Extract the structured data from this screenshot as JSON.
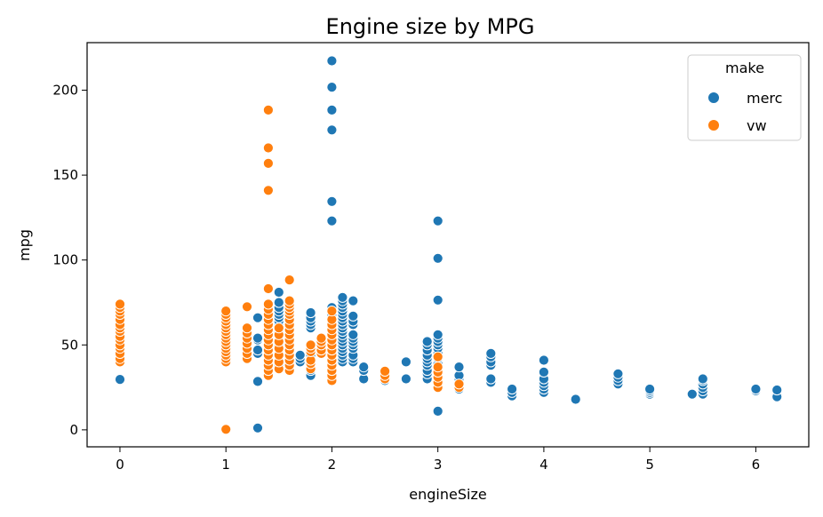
{
  "chart_data": {
    "type": "scatter",
    "title": "Engine size by MPG",
    "xlabel": "engineSize",
    "ylabel": "mpg",
    "xlim": [
      -0.31,
      6.5
    ],
    "ylim": [
      -10,
      228
    ],
    "xticks": [
      0,
      1,
      2,
      3,
      4,
      5,
      6
    ],
    "yticks": [
      0,
      50,
      100,
      150,
      200
    ],
    "grid": false,
    "legend": {
      "title": "make",
      "position": "top-right"
    },
    "series": [
      {
        "name": "merc",
        "color": "#1f77b4",
        "points": [
          [
            0,
            29.7
          ],
          [
            1.3,
            1.1
          ],
          [
            1.3,
            28.5
          ],
          [
            1.3,
            45
          ],
          [
            1.3,
            47
          ],
          [
            1.3,
            53
          ],
          [
            1.3,
            54
          ],
          [
            1.3,
            66
          ],
          [
            1.5,
            38
          ],
          [
            1.5,
            45
          ],
          [
            1.5,
            48
          ],
          [
            1.5,
            50
          ],
          [
            1.5,
            52
          ],
          [
            1.5,
            55
          ],
          [
            1.5,
            58
          ],
          [
            1.5,
            60
          ],
          [
            1.5,
            62
          ],
          [
            1.5,
            64
          ],
          [
            1.5,
            66
          ],
          [
            1.5,
            68
          ],
          [
            1.5,
            70
          ],
          [
            1.5,
            72
          ],
          [
            1.5,
            75
          ],
          [
            1.5,
            81
          ],
          [
            1.7,
            40
          ],
          [
            1.7,
            42
          ],
          [
            1.7,
            44
          ],
          [
            1.8,
            32
          ],
          [
            1.8,
            35
          ],
          [
            1.8,
            38
          ],
          [
            1.8,
            40
          ],
          [
            1.8,
            42
          ],
          [
            1.8,
            44
          ],
          [
            1.8,
            60
          ],
          [
            1.8,
            62
          ],
          [
            1.8,
            64
          ],
          [
            1.8,
            66
          ],
          [
            1.8,
            69
          ],
          [
            2.0,
            32
          ],
          [
            2.0,
            35
          ],
          [
            2.0,
            38
          ],
          [
            2.0,
            41
          ],
          [
            2.0,
            44
          ],
          [
            2.0,
            47
          ],
          [
            2.0,
            50
          ],
          [
            2.0,
            53
          ],
          [
            2.0,
            56
          ],
          [
            2.0,
            58
          ],
          [
            2.0,
            60
          ],
          [
            2.0,
            62
          ],
          [
            2.0,
            64
          ],
          [
            2.0,
            66
          ],
          [
            2.0,
            68
          ],
          [
            2.0,
            70
          ],
          [
            2.0,
            72
          ],
          [
            2.0,
            123
          ],
          [
            2.0,
            134.5
          ],
          [
            2.0,
            176.6
          ],
          [
            2.0,
            188.3
          ],
          [
            2.0,
            201.8
          ],
          [
            2.0,
            217.3
          ],
          [
            2.1,
            40
          ],
          [
            2.1,
            42
          ],
          [
            2.1,
            44
          ],
          [
            2.1,
            46
          ],
          [
            2.1,
            48
          ],
          [
            2.1,
            50
          ],
          [
            2.1,
            52
          ],
          [
            2.1,
            54
          ],
          [
            2.1,
            56
          ],
          [
            2.1,
            58
          ],
          [
            2.1,
            60
          ],
          [
            2.1,
            62
          ],
          [
            2.1,
            64
          ],
          [
            2.1,
            66
          ],
          [
            2.1,
            68
          ],
          [
            2.1,
            70
          ],
          [
            2.1,
            72
          ],
          [
            2.1,
            74
          ],
          [
            2.1,
            76
          ],
          [
            2.1,
            78
          ],
          [
            2.2,
            40
          ],
          [
            2.2,
            42
          ],
          [
            2.2,
            44
          ],
          [
            2.2,
            48
          ],
          [
            2.2,
            50
          ],
          [
            2.2,
            52
          ],
          [
            2.2,
            54
          ],
          [
            2.2,
            56
          ],
          [
            2.2,
            62
          ],
          [
            2.2,
            64
          ],
          [
            2.2,
            67
          ],
          [
            2.2,
            76
          ],
          [
            2.3,
            30
          ],
          [
            2.3,
            35
          ],
          [
            2.3,
            37
          ],
          [
            2.5,
            29
          ],
          [
            2.5,
            31
          ],
          [
            2.7,
            30
          ],
          [
            2.7,
            40
          ],
          [
            2.9,
            30
          ],
          [
            2.9,
            33
          ],
          [
            2.9,
            35
          ],
          [
            2.9,
            38
          ],
          [
            2.9,
            40
          ],
          [
            2.9,
            42
          ],
          [
            2.9,
            44
          ],
          [
            2.9,
            47
          ],
          [
            2.9,
            50
          ],
          [
            2.9,
            52
          ],
          [
            3.0,
            11
          ],
          [
            3.0,
            30
          ],
          [
            3.0,
            33
          ],
          [
            3.0,
            36
          ],
          [
            3.0,
            39
          ],
          [
            3.0,
            42
          ],
          [
            3.0,
            45
          ],
          [
            3.0,
            48
          ],
          [
            3.0,
            50
          ],
          [
            3.0,
            52
          ],
          [
            3.0,
            54
          ],
          [
            3.0,
            56
          ],
          [
            3.0,
            76.4
          ],
          [
            3.0,
            101
          ],
          [
            3.0,
            123
          ],
          [
            3.2,
            24
          ],
          [
            3.2,
            26
          ],
          [
            3.2,
            28
          ],
          [
            3.2,
            30
          ],
          [
            3.2,
            32
          ],
          [
            3.2,
            37
          ],
          [
            3.5,
            28
          ],
          [
            3.5,
            30
          ],
          [
            3.5,
            38
          ],
          [
            3.5,
            40
          ],
          [
            3.5,
            43
          ],
          [
            3.5,
            45
          ],
          [
            3.7,
            20
          ],
          [
            3.7,
            22
          ],
          [
            3.7,
            24
          ],
          [
            4.0,
            22
          ],
          [
            4.0,
            24
          ],
          [
            4.0,
            26
          ],
          [
            4.0,
            28
          ],
          [
            4.0,
            30
          ],
          [
            4.0,
            34
          ],
          [
            4.0,
            41
          ],
          [
            4.3,
            18
          ],
          [
            4.7,
            27
          ],
          [
            4.7,
            29
          ],
          [
            4.7,
            31
          ],
          [
            4.7,
            33
          ],
          [
            5.0,
            21
          ],
          [
            5.0,
            22
          ],
          [
            5.0,
            23
          ],
          [
            5.0,
            24
          ],
          [
            5.4,
            21
          ],
          [
            5.5,
            21
          ],
          [
            5.5,
            23
          ],
          [
            5.5,
            25
          ],
          [
            5.5,
            27
          ],
          [
            5.5,
            29
          ],
          [
            5.5,
            30
          ],
          [
            6.0,
            23
          ],
          [
            6.0,
            24
          ],
          [
            6.2,
            19.5
          ],
          [
            6.2,
            23.5
          ]
        ]
      },
      {
        "name": "vw",
        "color": "#ff7f0e",
        "points": [
          [
            0,
            40
          ],
          [
            0,
            42
          ],
          [
            0,
            45
          ],
          [
            0,
            48
          ],
          [
            0,
            50
          ],
          [
            0,
            53
          ],
          [
            0,
            55
          ],
          [
            0,
            58
          ],
          [
            0,
            60
          ],
          [
            0,
            62
          ],
          [
            0,
            65
          ],
          [
            0,
            68
          ],
          [
            0,
            70
          ],
          [
            0,
            72
          ],
          [
            0,
            74
          ],
          [
            1.0,
            0.3
          ],
          [
            1.0,
            40
          ],
          [
            1.0,
            42
          ],
          [
            1.0,
            44
          ],
          [
            1.0,
            46
          ],
          [
            1.0,
            48
          ],
          [
            1.0,
            50
          ],
          [
            1.0,
            52
          ],
          [
            1.0,
            54
          ],
          [
            1.0,
            56
          ],
          [
            1.0,
            58
          ],
          [
            1.0,
            60
          ],
          [
            1.0,
            62
          ],
          [
            1.0,
            64
          ],
          [
            1.0,
            66
          ],
          [
            1.0,
            68
          ],
          [
            1.0,
            70
          ],
          [
            1.2,
            42
          ],
          [
            1.2,
            45
          ],
          [
            1.2,
            48
          ],
          [
            1.2,
            51
          ],
          [
            1.2,
            54
          ],
          [
            1.2,
            57
          ],
          [
            1.2,
            60
          ],
          [
            1.2,
            72.5
          ],
          [
            1.4,
            32
          ],
          [
            1.4,
            35
          ],
          [
            1.4,
            38
          ],
          [
            1.4,
            41
          ],
          [
            1.4,
            44
          ],
          [
            1.4,
            47
          ],
          [
            1.4,
            50
          ],
          [
            1.4,
            53
          ],
          [
            1.4,
            56
          ],
          [
            1.4,
            59
          ],
          [
            1.4,
            62
          ],
          [
            1.4,
            65
          ],
          [
            1.4,
            68
          ],
          [
            1.4,
            71
          ],
          [
            1.4,
            74
          ],
          [
            1.4,
            83.1
          ],
          [
            1.4,
            141
          ],
          [
            1.4,
            156.9
          ],
          [
            1.4,
            166
          ],
          [
            1.4,
            188.3
          ],
          [
            1.5,
            36
          ],
          [
            1.5,
            40
          ],
          [
            1.5,
            44
          ],
          [
            1.5,
            48
          ],
          [
            1.5,
            52
          ],
          [
            1.5,
            56
          ],
          [
            1.5,
            60
          ],
          [
            1.6,
            35
          ],
          [
            1.6,
            38
          ],
          [
            1.6,
            41
          ],
          [
            1.6,
            44
          ],
          [
            1.6,
            47
          ],
          [
            1.6,
            50
          ],
          [
            1.6,
            53
          ],
          [
            1.6,
            56
          ],
          [
            1.6,
            59
          ],
          [
            1.6,
            62
          ],
          [
            1.6,
            65
          ],
          [
            1.6,
            68
          ],
          [
            1.6,
            70
          ],
          [
            1.6,
            72
          ],
          [
            1.6,
            74
          ],
          [
            1.6,
            76
          ],
          [
            1.6,
            88.3
          ],
          [
            1.8,
            36
          ],
          [
            1.8,
            39
          ],
          [
            1.8,
            41
          ],
          [
            1.8,
            46
          ],
          [
            1.8,
            48
          ],
          [
            1.8,
            50
          ],
          [
            1.9,
            45
          ],
          [
            1.9,
            47
          ],
          [
            1.9,
            50
          ],
          [
            1.9,
            52
          ],
          [
            1.9,
            54
          ],
          [
            2.0,
            29
          ],
          [
            2.0,
            32
          ],
          [
            2.0,
            35
          ],
          [
            2.0,
            38
          ],
          [
            2.0,
            41
          ],
          [
            2.0,
            44
          ],
          [
            2.0,
            47
          ],
          [
            2.0,
            50
          ],
          [
            2.0,
            53
          ],
          [
            2.0,
            56
          ],
          [
            2.0,
            59
          ],
          [
            2.0,
            62
          ],
          [
            2.0,
            65
          ],
          [
            2.0,
            70
          ],
          [
            2.5,
            30
          ],
          [
            2.5,
            32
          ],
          [
            2.5,
            34.5
          ],
          [
            3.0,
            25
          ],
          [
            3.0,
            28
          ],
          [
            3.0,
            31
          ],
          [
            3.0,
            34
          ],
          [
            3.0,
            37
          ],
          [
            3.0,
            43
          ],
          [
            3.2,
            25
          ],
          [
            3.2,
            27
          ]
        ]
      }
    ]
  }
}
